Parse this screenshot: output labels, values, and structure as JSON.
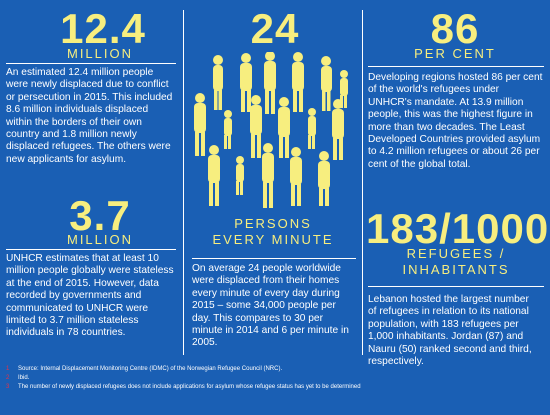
{
  "colors": {
    "background": "#1a5fb4",
    "accent_yellow": "#f7ee7f",
    "text": "#ffffff",
    "footnote_number": "#e0334a"
  },
  "stat_new_displaced": {
    "value": "12.4",
    "unit": "MILLION",
    "text": "An estimated 12.4 million people were newly displaced due to conflict or persecution in 2015. This included 8.6 million individuals displaced within the borders of their own country and 1.8 million newly displaced refugees. The others were new applicants for asylum."
  },
  "stat_stateless": {
    "value": "3.7",
    "unit": "MILLION",
    "text": "UNHCR estimates that at least 10 million people globally were stateless at the end of 2015. However, data recorded by governments and communicated to UNHCR were limited to 3.7 million stateless individuals in 78 countries."
  },
  "stat_per_minute": {
    "value": "24",
    "unit_line1": "PERSONS",
    "unit_line2": "EVERY MINUTE",
    "text": "On average 24 people worldwide were displaced from their homes every minute of every day during 2015 – some 34,000 people per day. This compares to 30 per minute in 2014 and 6 per minute in 2005.",
    "illustration_icon": "people-silhouettes-icon"
  },
  "stat_developing": {
    "value": "86",
    "unit": "PER CENT",
    "text": "Developing regions hosted 86 per cent of the world's refugees under UNHCR's mandate. At 13.9 million people, this was the highest figure in more than two decades. The Least Developed Countries provided asylum to 4.2 million refugees or about 26 per cent of the global total."
  },
  "stat_lebanon": {
    "value": "183/1000",
    "unit_line1": "REFUGEES /",
    "unit_line2": "INHABITANTS",
    "text": "Lebanon hosted the largest number of refugees in relation to its national population, with 183 refugees per 1,000 inhabitants. Jordan (87) and Nauru (50) ranked second and third, respectively."
  },
  "footnotes": [
    {
      "num": "1",
      "text": "Source: Internal Displacement Monitoring Centre (IDMC) of the Norwegian Refugee Council (NRC)."
    },
    {
      "num": "2",
      "text": "Ibid."
    },
    {
      "num": "3",
      "text": "The number of newly displaced refugees does not include applications for asylum whose refugee status has yet to be determined"
    }
  ]
}
